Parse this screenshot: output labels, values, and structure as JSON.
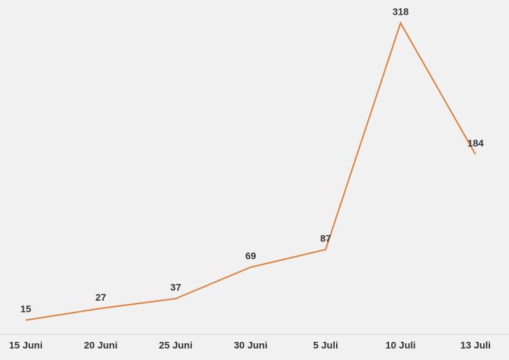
{
  "chart_data": {
    "type": "line",
    "categories": [
      "15 Juni",
      "20 Juni",
      "25 Juni",
      "30 Juni",
      "5 Juli",
      "10 Juli",
      "13 Juli"
    ],
    "values": [
      15,
      27,
      37,
      69,
      87,
      318,
      184
    ],
    "color": "#e07e38"
  }
}
